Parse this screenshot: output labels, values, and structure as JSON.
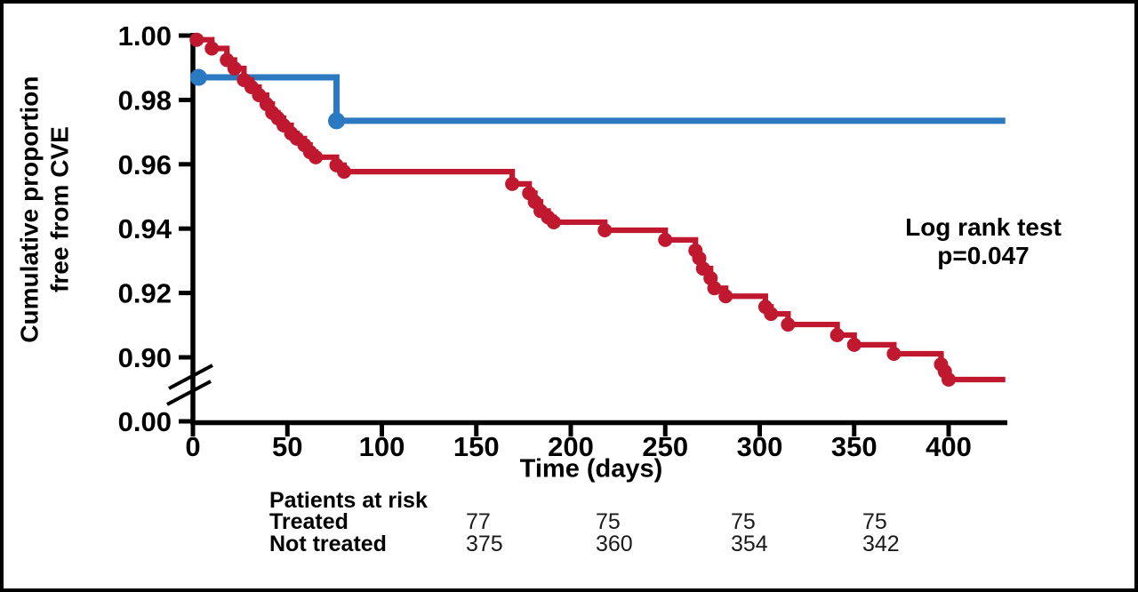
{
  "chart_data": {
    "type": "line",
    "subtype": "kaplan-meier-step",
    "title": "",
    "xlabel": "Time (days)",
    "ylabel_line1": "Cumulative proportion",
    "ylabel_line2": "free from CVE",
    "annotation": {
      "line1": "Log rank test",
      "line2": "p=0.047"
    },
    "x_ticks": [
      0,
      50,
      100,
      150,
      200,
      250,
      300,
      350,
      400
    ],
    "y_ticks": [
      {
        "value": 1.0,
        "label": "1.00"
      },
      {
        "value": 0.98,
        "label": "0.98"
      },
      {
        "value": 0.96,
        "label": "0.96"
      },
      {
        "value": 0.94,
        "label": "0.94"
      },
      {
        "value": 0.92,
        "label": "0.92"
      },
      {
        "value": 0.9,
        "label": "0.90"
      },
      {
        "value": 0.0,
        "label": "0.00"
      }
    ],
    "y_axis_break": true,
    "xlim": [
      0,
      433
    ],
    "ylim_upper_segment": [
      0.885,
      1.0
    ],
    "legend_position": "none",
    "grid": false,
    "series": [
      {
        "name": "Treated",
        "color": "#2A79C1",
        "end_day": 430,
        "points": [
          [
            3,
            0.987
          ],
          [
            76,
            0.9735
          ]
        ]
      },
      {
        "name": "Not treated",
        "color": "#C0182F",
        "end_day": 430,
        "points": [
          [
            2,
            0.9987
          ],
          [
            10,
            0.996
          ],
          [
            18,
            0.9924
          ],
          [
            22,
            0.9898
          ],
          [
            27,
            0.9862
          ],
          [
            31,
            0.984
          ],
          [
            35,
            0.9815
          ],
          [
            39,
            0.9787
          ],
          [
            42,
            0.976
          ],
          [
            45,
            0.9743
          ],
          [
            48,
            0.9721
          ],
          [
            52,
            0.9696
          ],
          [
            55,
            0.968
          ],
          [
            59,
            0.966
          ],
          [
            62,
            0.9638
          ],
          [
            65,
            0.9622
          ],
          [
            76,
            0.9597
          ],
          [
            80,
            0.9577
          ],
          [
            169,
            0.9539
          ],
          [
            178,
            0.951
          ],
          [
            181,
            0.9483
          ],
          [
            184,
            0.9455
          ],
          [
            188,
            0.9435
          ],
          [
            191,
            0.942
          ],
          [
            218,
            0.9395
          ],
          [
            250,
            0.9365
          ],
          [
            266,
            0.9332
          ],
          [
            268,
            0.9308
          ],
          [
            270,
            0.9276
          ],
          [
            274,
            0.9246
          ],
          [
            276,
            0.9215
          ],
          [
            282,
            0.919
          ],
          [
            303,
            0.9157
          ],
          [
            306,
            0.9135
          ],
          [
            315,
            0.9102
          ],
          [
            341,
            0.9069
          ],
          [
            350,
            0.9039
          ],
          [
            371,
            0.9011
          ],
          [
            396,
            0.8978
          ],
          [
            398,
            0.8956
          ],
          [
            400,
            0.8931
          ]
        ]
      }
    ],
    "risk_table": {
      "title": "Patients at risk",
      "rows": [
        {
          "label": "Treated",
          "values": [
            "77",
            "75",
            "75",
            "75"
          ]
        },
        {
          "label": "Not treated",
          "values": [
            "375",
            "360",
            "354",
            "342"
          ]
        }
      ]
    }
  }
}
